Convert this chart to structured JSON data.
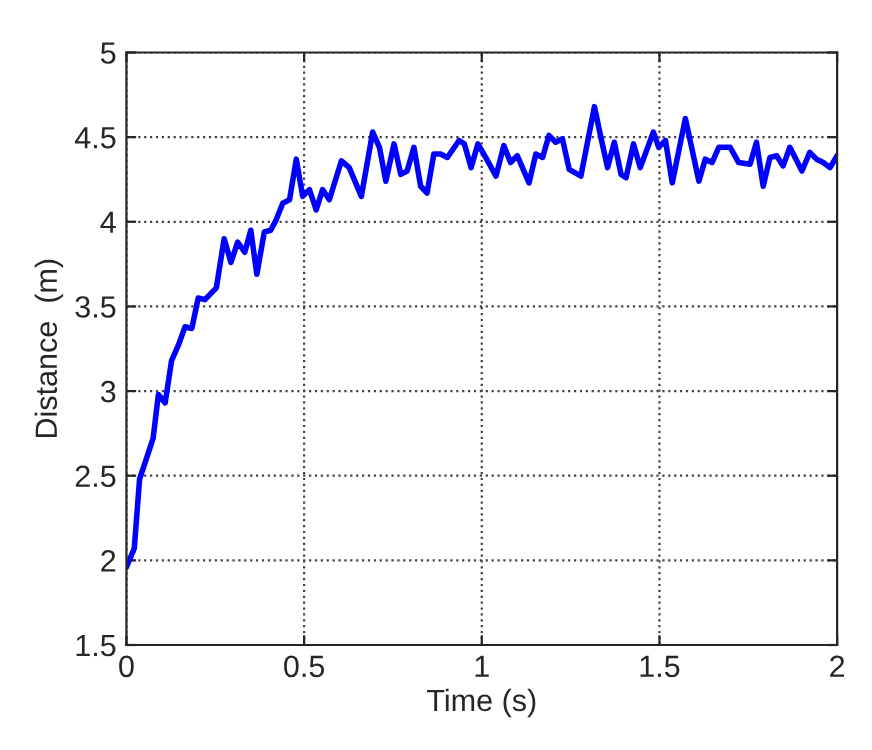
{
  "chart_data": {
    "type": "line",
    "xlabel": "Time (s)",
    "ylabel": "Distance  (m)",
    "xlim": [
      0,
      2
    ],
    "ylim": [
      1.5,
      5
    ],
    "xticks": [
      0,
      0.5,
      1,
      1.5,
      2
    ],
    "yticks": [
      1.5,
      2,
      2.5,
      3,
      3.5,
      4,
      4.5,
      5
    ],
    "grid": true,
    "line_style": "solid",
    "marker": "none",
    "series": [
      {
        "color": "#0000ff",
        "x": [
          0,
          0.022,
          0.037,
          0.056,
          0.075,
          0.09,
          0.109,
          0.127,
          0.146,
          0.165,
          0.184,
          0.202,
          0.221,
          0.253,
          0.275,
          0.294,
          0.313,
          0.333,
          0.35,
          0.367,
          0.388,
          0.406,
          0.421,
          0.44,
          0.459,
          0.478,
          0.496,
          0.515,
          0.534,
          0.552,
          0.571,
          0.605,
          0.627,
          0.661,
          0.693,
          0.712,
          0.73,
          0.753,
          0.772,
          0.79,
          0.809,
          0.828,
          0.846,
          0.865,
          0.884,
          0.903,
          0.936,
          0.951,
          0.97,
          0.989,
          1.011,
          1.04,
          1.062,
          1.081,
          1.1,
          1.133,
          1.152,
          1.171,
          1.189,
          1.208,
          1.227,
          1.246,
          1.279,
          1.317,
          1.335,
          1.354,
          1.373,
          1.392,
          1.406,
          1.427,
          1.446,
          1.483,
          1.498,
          1.517,
          1.536,
          1.573,
          1.611,
          1.629,
          1.648,
          1.667,
          1.699,
          1.723,
          1.755,
          1.773,
          1.792,
          1.811,
          1.83,
          1.848,
          1.867,
          1.901,
          1.923,
          1.942,
          1.961,
          1.98,
          2.0
        ],
        "values": [
          1.96,
          2.07,
          2.48,
          2.6,
          2.72,
          2.98,
          2.93,
          3.18,
          3.27,
          3.38,
          3.37,
          3.55,
          3.54,
          3.61,
          3.9,
          3.76,
          3.88,
          3.82,
          3.95,
          3.69,
          3.94,
          3.95,
          4.01,
          4.11,
          4.13,
          4.37,
          4.15,
          4.19,
          4.07,
          4.19,
          4.13,
          4.36,
          4.32,
          4.15,
          4.53,
          4.44,
          4.24,
          4.46,
          4.28,
          4.3,
          4.44,
          4.21,
          4.17,
          4.4,
          4.4,
          4.38,
          4.48,
          4.46,
          4.32,
          4.46,
          4.38,
          4.27,
          4.45,
          4.35,
          4.39,
          4.23,
          4.4,
          4.38,
          4.51,
          4.47,
          4.49,
          4.31,
          4.27,
          4.68,
          4.5,
          4.32,
          4.47,
          4.28,
          4.26,
          4.46,
          4.32,
          4.53,
          4.44,
          4.48,
          4.23,
          4.61,
          4.24,
          4.37,
          4.35,
          4.44,
          4.44,
          4.35,
          4.34,
          4.47,
          4.21,
          4.38,
          4.39,
          4.33,
          4.44,
          4.3,
          4.41,
          4.37,
          4.35,
          4.32,
          4.39
        ]
      }
    ]
  }
}
